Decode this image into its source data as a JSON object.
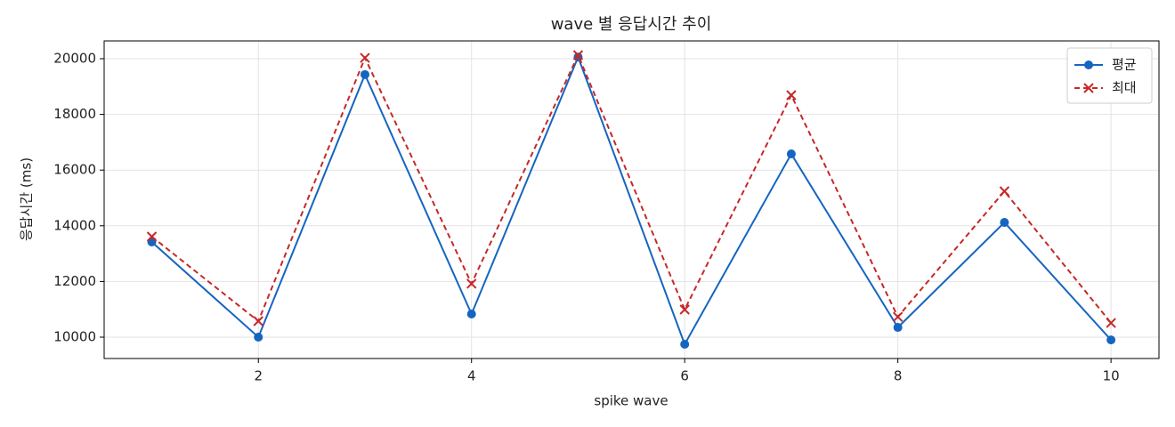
{
  "chart_data": {
    "type": "line",
    "title": "wave 별 응답시간 추이",
    "x_label": "spike wave",
    "y_label": "응답시간 (ms)",
    "x": [
      1,
      2,
      3,
      4,
      5,
      6,
      7,
      8,
      9,
      10
    ],
    "series": [
      {
        "name": "평균",
        "color": "#1565c0",
        "marker": "o",
        "dash": false,
        "values": [
          13420,
          10000,
          19430,
          10830,
          20060,
          9745,
          16580,
          10350,
          14120,
          9900
        ]
      },
      {
        "name": "최대",
        "color": "#c62828",
        "marker": "x",
        "dash": true,
        "values": [
          13610,
          10575,
          20030,
          11920,
          20130,
          10990,
          18690,
          10730,
          15240,
          10510
        ]
      }
    ],
    "xlim": [
      0.553,
      10.45
    ],
    "xticks": [
      2,
      4,
      6,
      8,
      10
    ],
    "ylim": [
      9233,
      20639
    ],
    "yticks": [
      10000,
      12000,
      14000,
      16000,
      18000,
      20000
    ],
    "grid": true,
    "legend": "upper right"
  }
}
